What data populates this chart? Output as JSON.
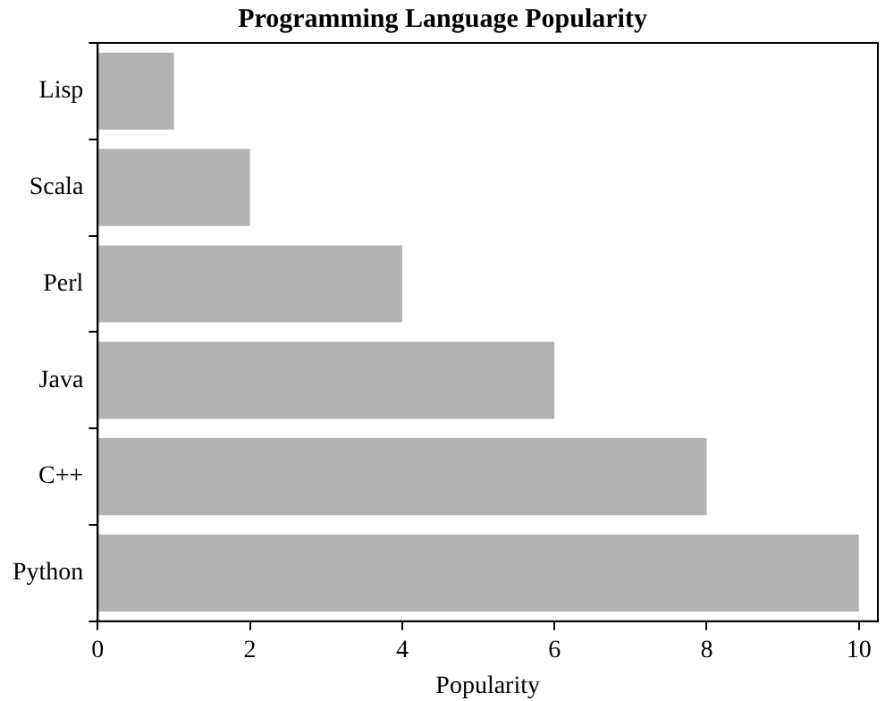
{
  "chart_data": {
    "type": "bar",
    "orientation": "horizontal",
    "title": "Programming Language Popularity",
    "xlabel": "Popularity",
    "categories": [
      "Lisp",
      "Scala",
      "Perl",
      "Java",
      "C++",
      "Python"
    ],
    "values": [
      1,
      2,
      4,
      6,
      8,
      10
    ],
    "color": "#b3b3b3",
    "xlim": [
      0,
      10.25
    ],
    "xticks": [
      0,
      2,
      4,
      6,
      8,
      10
    ],
    "grid": false,
    "legend": false
  }
}
